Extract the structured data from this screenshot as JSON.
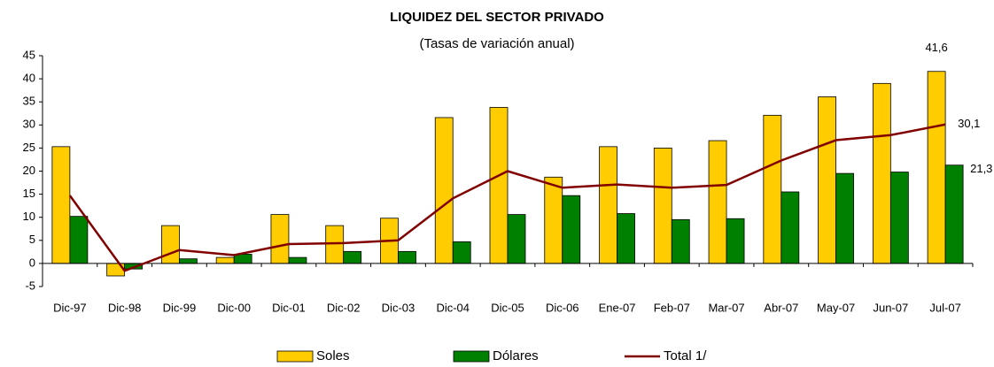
{
  "chart_data": {
    "type": "bar",
    "title": "LIQUIDEZ DEL SECTOR PRIVADO",
    "subtitle": "(Tasas de variación anual)",
    "categories": [
      "Dic-97",
      "Dic-98",
      "Dic-99",
      "Dic-00",
      "Dic-01",
      "Dic-02",
      "Dic-03",
      "Dic-04",
      "Dic-05",
      "Dic-06",
      "Ene-07",
      "Feb-07",
      "Mar-07",
      "Abr-07",
      "May-07",
      "Jun-07",
      "Jul-07"
    ],
    "series": [
      {
        "name": "Soles",
        "color": "#ffcc00",
        "values": [
          25.3,
          -2.7,
          8.2,
          1.3,
          10.6,
          8.2,
          9.8,
          31.6,
          33.8,
          18.7,
          25.3,
          25.0,
          26.6,
          32.1,
          36.1,
          39.0,
          41.6
        ],
        "value_labels": [
          null,
          null,
          null,
          null,
          null,
          null,
          null,
          null,
          null,
          null,
          null,
          null,
          null,
          null,
          null,
          null,
          "41,6"
        ]
      },
      {
        "name": "Dólares",
        "color": "#008000",
        "values": [
          10.2,
          -1.2,
          1.0,
          2.0,
          1.3,
          2.6,
          2.6,
          4.7,
          10.6,
          14.7,
          10.8,
          9.5,
          9.7,
          15.5,
          19.5,
          19.8,
          21.3
        ],
        "value_labels": [
          null,
          null,
          null,
          null,
          null,
          null,
          null,
          null,
          null,
          null,
          null,
          null,
          null,
          null,
          null,
          null,
          "21,3"
        ]
      },
      {
        "name": "Total 1/",
        "type": "line",
        "color": "#800000",
        "values": [
          14.7,
          -1.6,
          2.9,
          1.8,
          4.2,
          4.4,
          5.0,
          14.1,
          20.0,
          16.4,
          17.1,
          16.4,
          17.0,
          22.3,
          26.7,
          27.8,
          30.1
        ],
        "value_labels": [
          null,
          null,
          null,
          null,
          null,
          null,
          null,
          null,
          null,
          null,
          null,
          null,
          null,
          null,
          null,
          null,
          "30,1"
        ]
      }
    ],
    "ylim": [
      -5,
      45
    ],
    "yticks": [
      -5,
      0,
      5,
      10,
      15,
      20,
      25,
      30,
      35,
      40,
      45
    ],
    "grid": false
  }
}
